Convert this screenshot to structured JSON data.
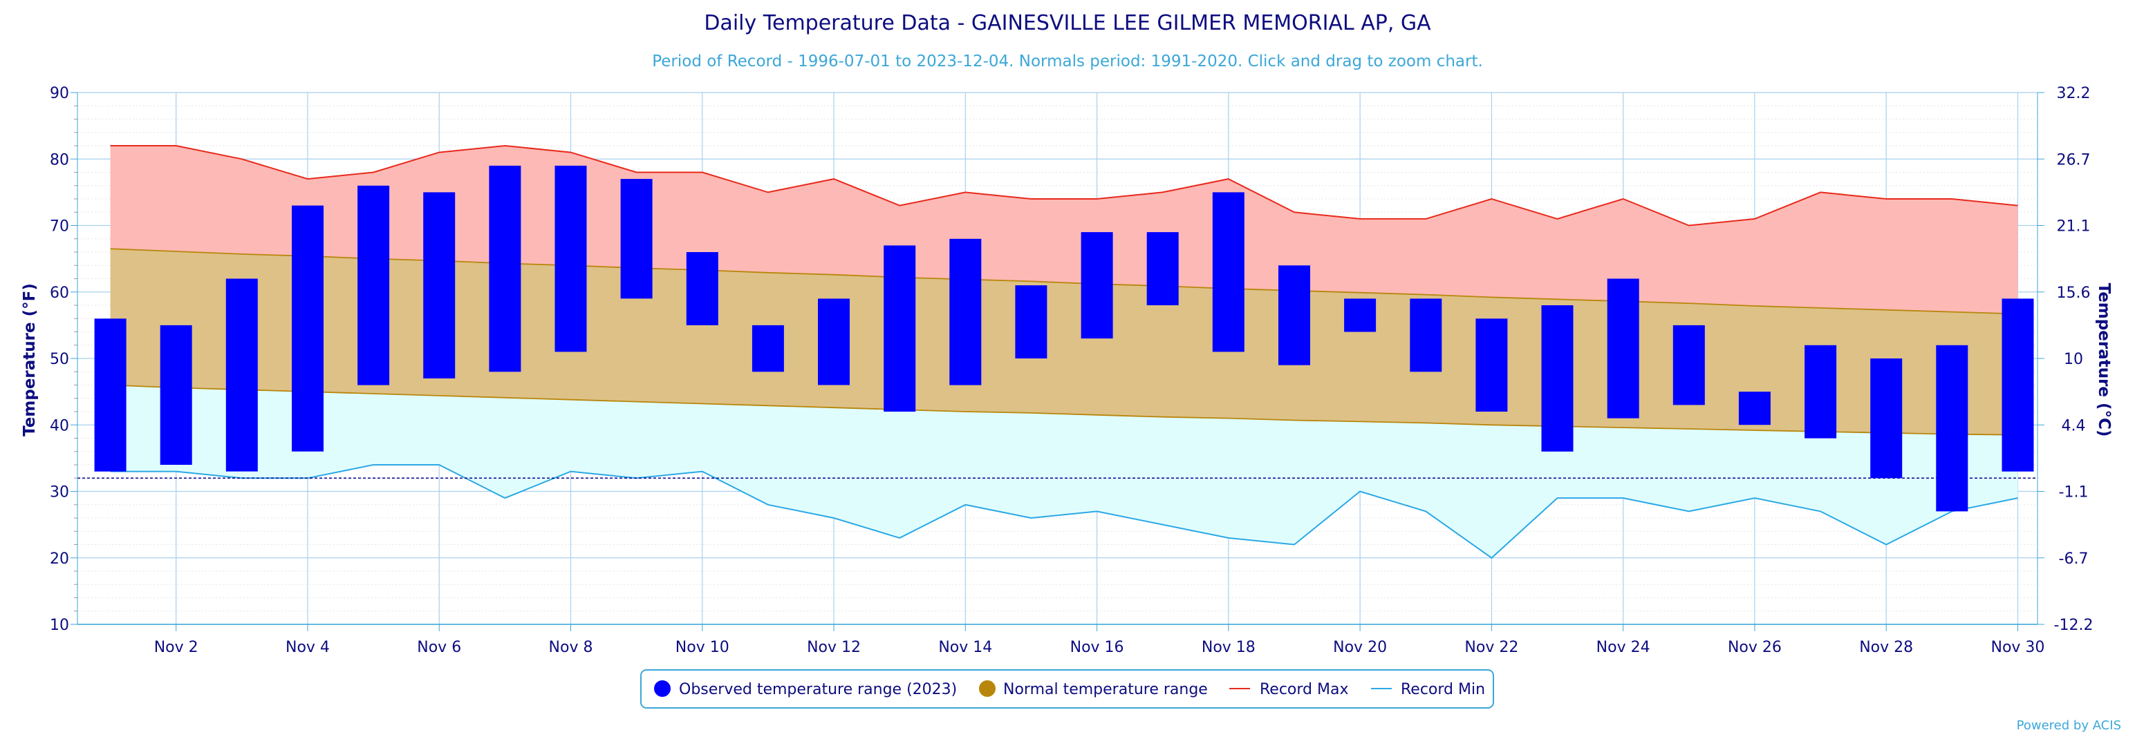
{
  "chart_data": {
    "type": "bar",
    "title": "Daily Temperature Data - GAINESVILLE LEE GILMER MEMORIAL AP, GA",
    "subtitle": "Period of Record - 1996-07-01 to 2023-12-04. Normals period: 1991-2020. Click and drag to zoom chart.",
    "ylabel": "Temperature (°F)",
    "ylabel_right": "Temperature (°C)",
    "ylim": [
      10,
      90
    ],
    "y_ticks": [
      "10",
      "20",
      "30",
      "40",
      "50",
      "60",
      "70",
      "80",
      "90"
    ],
    "y_ticks_right": [
      "-12.2",
      "-6.7",
      "-1.1",
      "4.4",
      "10",
      "15.6",
      "21.1",
      "26.7",
      "32.2"
    ],
    "freezing_line": 32,
    "x_tick_labels": [
      "Nov 2",
      "Nov 4",
      "Nov 6",
      "Nov 8",
      "Nov 10",
      "Nov 12",
      "Nov 14",
      "Nov 16",
      "Nov 18",
      "Nov 20",
      "Nov 22",
      "Nov 24",
      "Nov 26",
      "Nov 28",
      "Nov 30"
    ],
    "days": [
      1,
      2,
      3,
      4,
      5,
      6,
      7,
      8,
      9,
      10,
      11,
      12,
      13,
      14,
      15,
      16,
      17,
      18,
      19,
      20,
      21,
      22,
      23,
      24,
      25,
      26,
      27,
      28,
      29,
      30
    ],
    "observed_low": [
      33,
      34,
      33,
      36,
      46,
      47,
      48,
      51,
      59,
      55,
      48,
      46,
      42,
      46,
      50,
      53,
      58,
      51,
      49,
      54,
      48,
      42,
      36,
      41,
      43,
      40,
      38,
      32,
      27,
      33
    ],
    "observed_high": [
      56,
      55,
      62,
      73,
      76,
      75,
      79,
      79,
      77,
      66,
      55,
      59,
      67,
      68,
      61,
      69,
      69,
      75,
      64,
      59,
      59,
      56,
      58,
      62,
      55,
      45,
      52,
      50,
      52,
      59
    ],
    "normal_high": [
      66.5,
      66.1,
      65.7,
      65.4,
      65.0,
      64.7,
      64.3,
      64.0,
      63.6,
      63.3,
      62.9,
      62.6,
      62.2,
      61.9,
      61.6,
      61.2,
      60.9,
      60.5,
      60.2,
      59.9,
      59.6,
      59.2,
      58.9,
      58.6,
      58.3,
      57.9,
      57.6,
      57.3,
      57.0,
      56.7
    ],
    "normal_low": [
      46.0,
      45.6,
      45.3,
      45.0,
      44.7,
      44.4,
      44.1,
      43.8,
      43.5,
      43.2,
      42.9,
      42.6,
      42.3,
      42.0,
      41.8,
      41.5,
      41.2,
      41.0,
      40.7,
      40.5,
      40.3,
      40.0,
      39.8,
      39.6,
      39.4,
      39.2,
      39.0,
      38.8,
      38.6,
      38.5
    ],
    "record_max": [
      82,
      82,
      80,
      77,
      78,
      81,
      82,
      81,
      78,
      78,
      75,
      77,
      73,
      75,
      74,
      74,
      75,
      77,
      72,
      71,
      71,
      74,
      71,
      74,
      70,
      71,
      75,
      74,
      74,
      73
    ],
    "record_min": [
      33,
      33,
      32,
      32,
      34,
      34,
      29,
      33,
      32,
      33,
      28,
      26,
      23,
      28,
      26,
      27,
      25,
      23,
      22,
      30,
      27,
      20,
      29,
      29,
      27,
      29,
      27,
      22,
      27,
      29
    ],
    "series": [
      {
        "name": "Observed temperature range (2023)",
        "color": "#0000ff"
      },
      {
        "name": "Normal temperature range",
        "color": "#b8860b"
      },
      {
        "name": "Record Max",
        "color": "#e8291c"
      },
      {
        "name": "Record Min",
        "color": "#2aa8e6"
      }
    ],
    "colors": {
      "record_max_fill": "#fdb9b5",
      "normal_fill": "#ddc187",
      "record_min_fill": "#e0fdfd",
      "normal_line": "#b8860b",
      "freezing_line": "#00008b",
      "grid": "#a6d1ee"
    },
    "legend_placement": "bottom-center",
    "grid": true,
    "credits": "Powered by ACIS"
  }
}
